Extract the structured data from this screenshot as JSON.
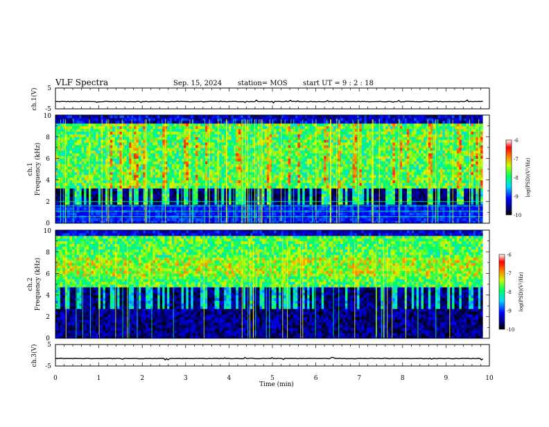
{
  "header": {
    "title": "VLF Spectra",
    "date": "Sep. 15, 2024",
    "station": "station= MOS",
    "start_ut": "start  UT =   9 : 2  : 18"
  },
  "chart_data": [
    {
      "type": "line",
      "panel": "ch1-waveform",
      "ylabel": "ch.1(V)",
      "ylim": [
        -5,
        5
      ],
      "y_ticks": [
        {
          "v": 5,
          "label": "5"
        },
        {
          "v": -5,
          "label": "-5"
        }
      ],
      "baseline_value": -1.5,
      "xlim": [
        0,
        10
      ]
    },
    {
      "type": "heatmap",
      "panel": "ch1-spectrogram",
      "ylabel": [
        "ch.1",
        "Frequency (kHz)"
      ],
      "ylim": [
        0,
        10
      ],
      "xlim": [
        0,
        10
      ],
      "y_ticks": [
        "0",
        "2",
        "4",
        "6",
        "8",
        "10"
      ],
      "colorbar": {
        "label": "log(PSD)(V²/Hz)",
        "range": [
          -10,
          -6
        ],
        "ticks": [
          "-6",
          "-7",
          "-8",
          "-9",
          "-10"
        ]
      },
      "data_end_min": 9.85
    },
    {
      "type": "heatmap",
      "panel": "ch2-spectrogram",
      "ylabel": [
        "ch.2",
        "Frequency (kHz)"
      ],
      "ylim": [
        0,
        10
      ],
      "xlim": [
        0,
        10
      ],
      "y_ticks": [
        "0",
        "2",
        "4",
        "6",
        "8",
        "10"
      ],
      "colorbar": {
        "label": "log(PSD)(V²/Hz)",
        "range": [
          -10,
          -6
        ],
        "ticks": [
          "-6",
          "-7",
          "-8",
          "-9",
          "-10"
        ]
      },
      "data_end_min": 9.85
    },
    {
      "type": "line",
      "panel": "ch3-waveform",
      "ylabel": "ch.3(V)",
      "ylim": [
        -5,
        5
      ],
      "y_ticks": [
        {
          "v": 5,
          "label": "5"
        },
        {
          "v": -5,
          "label": "-5"
        }
      ],
      "baseline_value": -1.5,
      "xlim": [
        0,
        10
      ],
      "xlabel": "Time (min)",
      "x_ticks": [
        "0",
        "1",
        "2",
        "3",
        "4",
        "5",
        "6",
        "7",
        "8",
        "9",
        "10"
      ]
    }
  ]
}
